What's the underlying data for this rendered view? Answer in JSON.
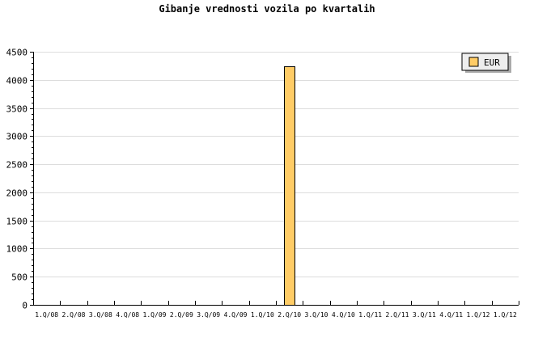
{
  "chart_data": {
    "type": "bar",
    "title": "Gibanje vrednosti vozila po kvartalih",
    "xlabel": "",
    "ylabel": "",
    "categories": [
      "1.Q/08",
      "2.Q/08",
      "3.Q/08",
      "4.Q/08",
      "1.Q/09",
      "2.Q/09",
      "3.Q/09",
      "4.Q/09",
      "1.Q/10",
      "2.Q/10",
      "3.Q/10",
      "4.Q/10",
      "1.Q/11",
      "2.Q/11",
      "3.Q/11",
      "4.Q/11",
      "1.Q/12",
      "1.Q/12"
    ],
    "series": [
      {
        "name": "EUR",
        "color": "#ffcc66",
        "values": [
          0,
          0,
          0,
          0,
          0,
          0,
          0,
          0,
          0,
          4240,
          0,
          0,
          0,
          0,
          0,
          0,
          0,
          0
        ]
      }
    ],
    "ylim": [
      0,
      4500
    ],
    "yticks": [
      0,
      500,
      1000,
      1500,
      2000,
      2500,
      3000,
      3500,
      4000,
      4500
    ],
    "grid": true,
    "legend": "top-right"
  }
}
